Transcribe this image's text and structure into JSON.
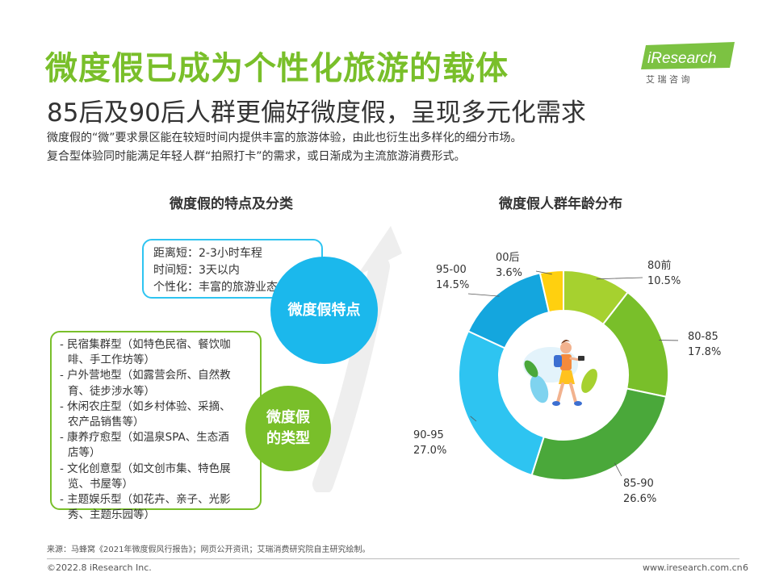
{
  "header": {
    "title": "微度假已成为个性化旅游的载体",
    "subtitle": "85后及90后人群更偏好微度假，呈现多元化需求",
    "desc_line1": "微度假的“微”要求景区能在较短时间内提供丰富的旅游体验，由此也衍生出多样化的细分市场。",
    "desc_line2": "复合型体验同时能满足年轻人群“拍照打卡”的需求，或日渐成为主流旅游消费形式。"
  },
  "logo": {
    "brand": "iResearch",
    "tagline": "艾 瑞 咨 询"
  },
  "left": {
    "heading": "微度假的特点及分类",
    "features_circle": "微度假特点",
    "types_circle_line1": "微度假",
    "types_circle_line2": "的类型",
    "features": [
      "距离短：2-3小时车程",
      "时间短：3天以内",
      "个性化：丰富的旅游业态"
    ],
    "types": [
      "- 民宿集群型（如特色民宿、餐饮咖",
      "  啡、手工作坊等）",
      "- 户外营地型（如露营会所、自然教",
      "  育、徒步涉水等）",
      "- 休闲农庄型（如乡村体验、采摘、",
      "  农产品销售等）",
      "- 康养疗愈型（如温泉SPA、生态酒",
      "  店等）",
      "- 文化创意型（如文创市集、特色展",
      "  览、书屋等）",
      "- 主题娱乐型（如花卉、亲子、光影",
      "  秀、主题乐园等）"
    ]
  },
  "right": {
    "heading": "微度假人群年龄分布"
  },
  "chart_data": {
    "type": "pie",
    "donut": true,
    "categories": [
      "80前",
      "80-85",
      "85-90",
      "90-95",
      "95-00",
      "00后"
    ],
    "values": [
      10.5,
      17.8,
      26.6,
      27.0,
      14.5,
      3.6
    ],
    "value_labels": [
      "10.5%",
      "17.8%",
      "26.6%",
      "27.0%",
      "14.5%",
      "3.6%"
    ],
    "colors": [
      "#a6d12f",
      "#79bf2a",
      "#4aa83a",
      "#2ec4f1",
      "#14a6de",
      "#ffd00f"
    ],
    "title": "微度假人群年龄分布"
  },
  "footer": {
    "source": "来源：马蜂窝《2021年微度假风行报告》；网页公开资讯；艾瑞消费研究院自主研究绘制。",
    "copyright": "©2022.8 iResearch Inc.",
    "website": "www.iresearch.com.cn",
    "page": "6"
  }
}
